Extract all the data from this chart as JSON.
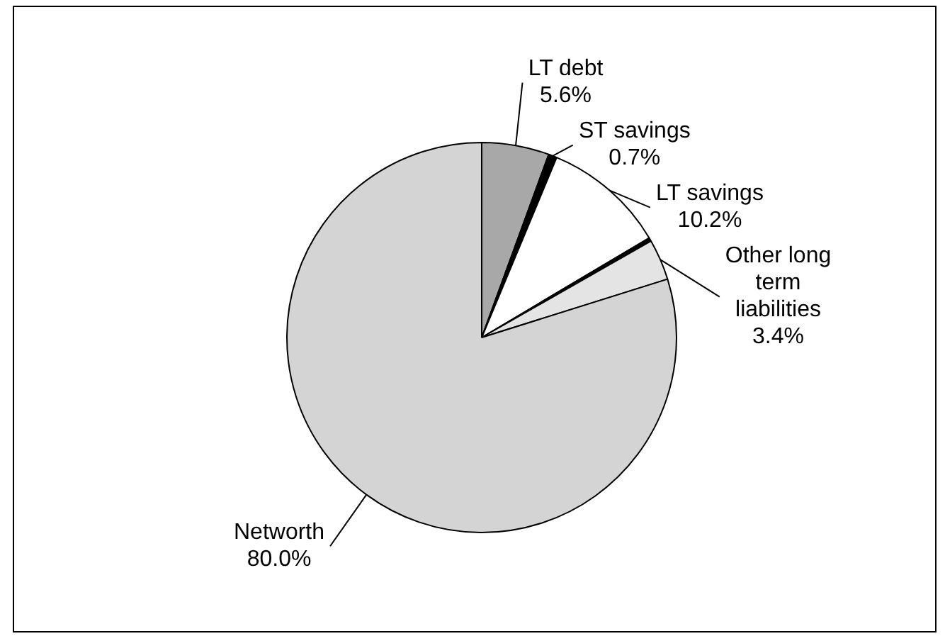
{
  "chart_data": {
    "type": "pie",
    "categories": [
      "LT debt",
      "ST savings",
      "LT savings",
      null,
      "Other long term liabilities",
      "Networth"
    ],
    "values": [
      5.6,
      0.7,
      10.2,
      0.3,
      3.4,
      80.0
    ],
    "value_labels": [
      "5.6%",
      "0.7%",
      "10.2%",
      null,
      "3.4%",
      "80.0%"
    ],
    "colors": [
      "#a8a8a8",
      "#000000",
      "#ffffff",
      "#000000",
      "#e4e4e4",
      "#d4d4d4"
    ]
  }
}
